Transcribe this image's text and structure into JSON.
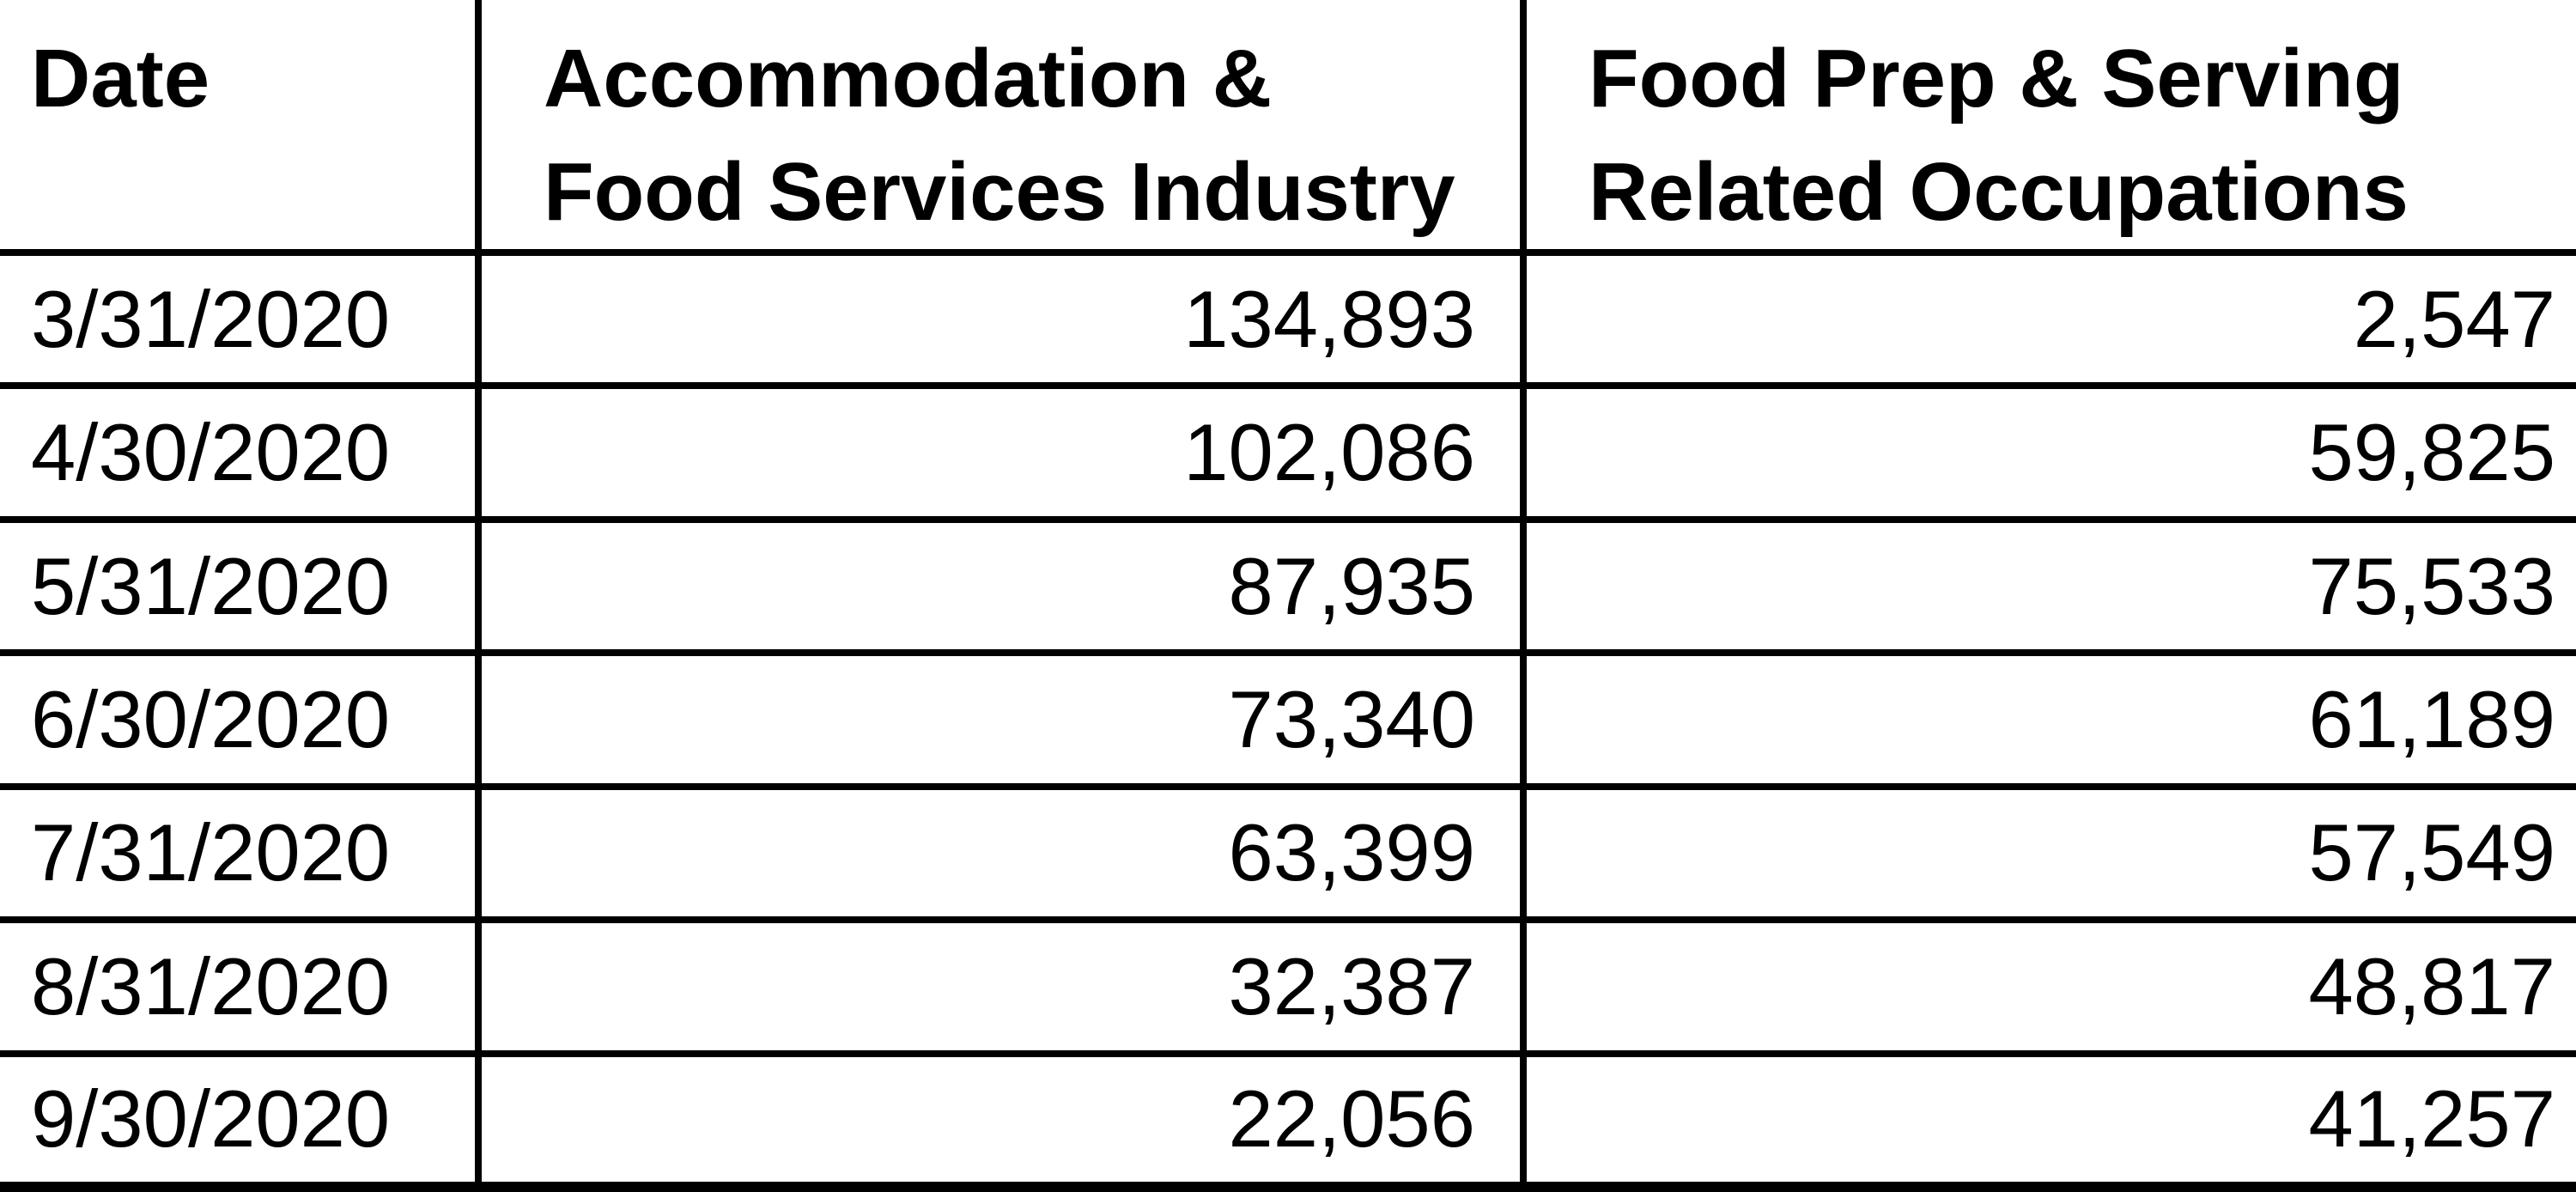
{
  "colors": {
    "background": "#ffffff",
    "text": "#000000",
    "border": "#000000"
  },
  "table": {
    "headers": {
      "date": "Date",
      "industry": "Accommodation & Food Services Industry",
      "occupations": "Food Prep & Serving Related Occupations"
    },
    "rows": [
      {
        "date": "3/31/2020",
        "industry": "134,893",
        "occupations": "2,547"
      },
      {
        "date": "4/30/2020",
        "industry": "102,086",
        "occupations": "59,825"
      },
      {
        "date": "5/31/2020",
        "industry": "87,935",
        "occupations": "75,533"
      },
      {
        "date": "6/30/2020",
        "industry": "73,340",
        "occupations": "61,189"
      },
      {
        "date": "7/31/2020",
        "industry": "63,399",
        "occupations": "57,549"
      },
      {
        "date": "8/31/2020",
        "industry": "32,387",
        "occupations": "48,817"
      },
      {
        "date": "9/30/2020",
        "industry": "22,056",
        "occupations": "41,257"
      }
    ]
  },
  "chart_data": {
    "type": "table",
    "title": "",
    "columns": [
      "Date",
      "Accommodation & Food Services Industry",
      "Food Prep & Serving Related Occupations"
    ],
    "categories": [
      "3/31/2020",
      "4/30/2020",
      "5/31/2020",
      "6/30/2020",
      "7/31/2020",
      "8/31/2020",
      "9/30/2020"
    ],
    "series": [
      {
        "name": "Accommodation & Food Services Industry",
        "values": [
          134893,
          102086,
          87935,
          73340,
          63399,
          32387,
          22056
        ]
      },
      {
        "name": "Food Prep & Serving Related Occupations",
        "values": [
          2547,
          59825,
          75533,
          61189,
          57549,
          48817,
          41257
        ]
      }
    ]
  }
}
